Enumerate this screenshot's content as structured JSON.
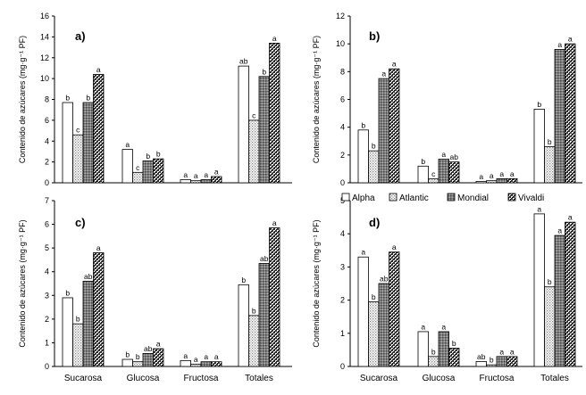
{
  "chart_data": [
    {
      "type": "bar",
      "title": "a)",
      "ylabel": "Contenido de azúcares (mg·g⁻¹ PF)",
      "ylim": [
        0,
        16
      ],
      "yticks": [
        0,
        2,
        4,
        6,
        8,
        10,
        12,
        14,
        16
      ],
      "categories": [
        "Sucarosa",
        "Glucosa",
        "Fructosa",
        "Totales"
      ],
      "series": [
        {
          "name": "Alpha",
          "values": [
            7.7,
            3.2,
            0.3,
            11.2
          ],
          "labels": [
            "b",
            "a",
            "a",
            "ab"
          ]
        },
        {
          "name": "Atlantic",
          "values": [
            4.6,
            1.0,
            0.2,
            6.0
          ],
          "labels": [
            "c",
            "c",
            "a",
            "c"
          ]
        },
        {
          "name": "Mondial",
          "values": [
            7.7,
            2.1,
            0.3,
            10.2
          ],
          "labels": [
            "b",
            "b",
            "a",
            "b"
          ]
        },
        {
          "name": "Vivaldi",
          "values": [
            10.4,
            2.3,
            0.6,
            13.4
          ],
          "labels": [
            "a",
            "b",
            "a",
            "a"
          ]
        }
      ]
    },
    {
      "type": "bar",
      "title": "b)",
      "ylabel": "Contenido de azúcares (mg·g⁻¹ PF)",
      "ylim": [
        0,
        12
      ],
      "yticks": [
        0,
        2,
        4,
        6,
        8,
        10,
        12
      ],
      "categories": [
        "Sucarosa",
        "Glucosa",
        "Fructosa",
        "Totales"
      ],
      "series": [
        {
          "name": "Alpha",
          "values": [
            3.8,
            1.2,
            0.1,
            5.3
          ],
          "labels": [
            "b",
            "b",
            "a",
            "b"
          ]
        },
        {
          "name": "Atlantic",
          "values": [
            2.3,
            0.3,
            0.15,
            2.6
          ],
          "labels": [
            "b",
            "c",
            "a",
            "b"
          ]
        },
        {
          "name": "Mondial",
          "values": [
            7.5,
            1.7,
            0.3,
            9.6
          ],
          "labels": [
            "a",
            "a",
            "a",
            "a"
          ]
        },
        {
          "name": "Vivaldi",
          "values": [
            8.2,
            1.5,
            0.3,
            10.0
          ],
          "labels": [
            "a",
            "ab",
            "a",
            "a"
          ]
        }
      ]
    },
    {
      "type": "bar",
      "title": "c)",
      "ylabel": "Contenido de azúcares (mg·g⁻¹ PF)",
      "ylim": [
        0,
        7
      ],
      "yticks": [
        0,
        1,
        2,
        3,
        4,
        5,
        6,
        7
      ],
      "categories": [
        "Sucarosa",
        "Glucosa",
        "Fructosa",
        "Totales"
      ],
      "series": [
        {
          "name": "Alpha",
          "values": [
            2.9,
            0.3,
            0.25,
            3.45
          ],
          "labels": [
            "b",
            "b",
            "a",
            "b"
          ]
        },
        {
          "name": "Atlantic",
          "values": [
            1.8,
            0.2,
            0.1,
            2.15
          ],
          "labels": [
            "b",
            "b",
            "a",
            "b"
          ]
        },
        {
          "name": "Mondial",
          "values": [
            3.6,
            0.55,
            0.2,
            4.35
          ],
          "labels": [
            "ab",
            "ab",
            "a",
            "ab"
          ]
        },
        {
          "name": "Vivaldi",
          "values": [
            4.8,
            0.75,
            0.2,
            5.85
          ],
          "labels": [
            "a",
            "a",
            "a",
            "a"
          ]
        }
      ]
    },
    {
      "type": "bar",
      "title": "d)",
      "ylabel": "Contenido de azúcares (mg·g⁻¹ PF)",
      "ylim": [
        0,
        5
      ],
      "yticks": [
        0,
        1,
        2,
        3,
        4,
        5
      ],
      "categories": [
        "Sucarosa",
        "Glucosa",
        "Fructosa",
        "Totales"
      ],
      "series": [
        {
          "name": "Alpha",
          "values": [
            3.3,
            1.05,
            0.15,
            4.6
          ],
          "labels": [
            "a",
            "a",
            "ab",
            "a"
          ]
        },
        {
          "name": "Atlantic",
          "values": [
            1.95,
            0.3,
            0.05,
            2.4
          ],
          "labels": [
            "b",
            "b",
            "b",
            "b"
          ]
        },
        {
          "name": "Mondial",
          "values": [
            2.5,
            1.05,
            0.3,
            3.95
          ],
          "labels": [
            "ab",
            "a",
            "a",
            "a"
          ]
        },
        {
          "name": "Vivaldi",
          "values": [
            3.45,
            0.55,
            0.3,
            4.35
          ],
          "labels": [
            "a",
            "b",
            "a",
            "a"
          ]
        }
      ]
    }
  ],
  "legend": {
    "placement": "between-b-and-d",
    "items": [
      "Alpha",
      "Atlantic",
      "Mondial",
      "Vivaldi"
    ]
  }
}
